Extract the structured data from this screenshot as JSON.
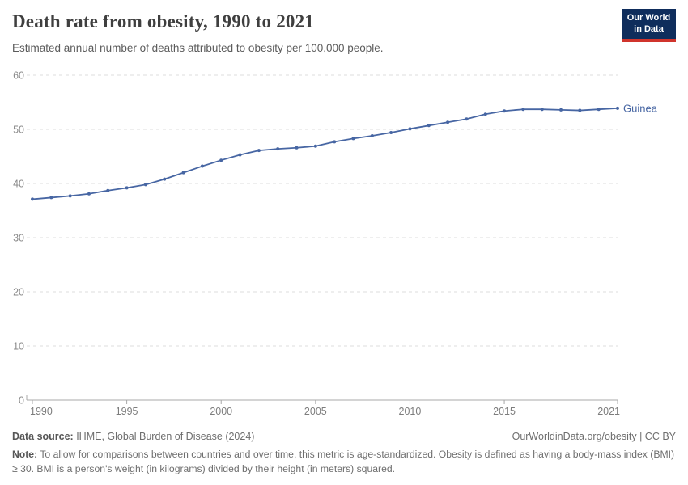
{
  "header": {
    "title": "Death rate from obesity, 1990 to 2021",
    "subtitle": "Estimated annual number of deaths attributed to obesity per 100,000 people.",
    "logo": {
      "line1": "Our World",
      "line2": "in Data"
    }
  },
  "chart_data": {
    "type": "line",
    "title": "Death rate from obesity, 1990 to 2021",
    "x": [
      1990,
      1991,
      1992,
      1993,
      1994,
      1995,
      1996,
      1997,
      1998,
      1999,
      2000,
      2001,
      2002,
      2003,
      2004,
      2005,
      2006,
      2007,
      2008,
      2009,
      2010,
      2011,
      2012,
      2013,
      2014,
      2015,
      2016,
      2017,
      2018,
      2019,
      2020,
      2021
    ],
    "series": [
      {
        "name": "Guinea",
        "color": "#4766a3",
        "values": [
          37.1,
          37.4,
          37.7,
          38.1,
          38.7,
          39.2,
          39.8,
          40.8,
          42.0,
          43.2,
          44.3,
          45.3,
          46.1,
          46.4,
          46.6,
          46.9,
          47.7,
          48.3,
          48.8,
          49.4,
          50.1,
          50.7,
          51.3,
          51.9,
          52.8,
          53.4,
          53.7,
          53.7,
          53.6,
          53.5,
          53.7,
          53.9
        ]
      }
    ],
    "xlabel": "",
    "ylabel": "",
    "ylim": [
      0,
      60
    ],
    "yticks": [
      0,
      10,
      20,
      30,
      40,
      50,
      60
    ],
    "xticks": [
      1990,
      1995,
      2000,
      2005,
      2010,
      2015,
      2021
    ],
    "grid": "horizontal-dashed",
    "legend_position": "end-of-line-label"
  },
  "footer": {
    "datasource_label": "Data source:",
    "datasource_value": " IHME, Global Burden of Disease (2024)",
    "rights": "OurWorldinData.org/obesity | CC BY",
    "note_label": "Note:",
    "note_value": " To allow for comparisons between countries and over time, this metric is age-standardized. Obesity is defined as having a body-mass index (BMI) ≥ 30. BMI is a person's weight (in kilograms) divided by their height (in meters) squared."
  },
  "colors": {
    "line": "#4766a3",
    "grid": "#dddddd",
    "axis": "#a8a8a8",
    "title": "#3f3f3f",
    "logo_blue": "#0f2d5c",
    "logo_red": "#d0342c"
  }
}
